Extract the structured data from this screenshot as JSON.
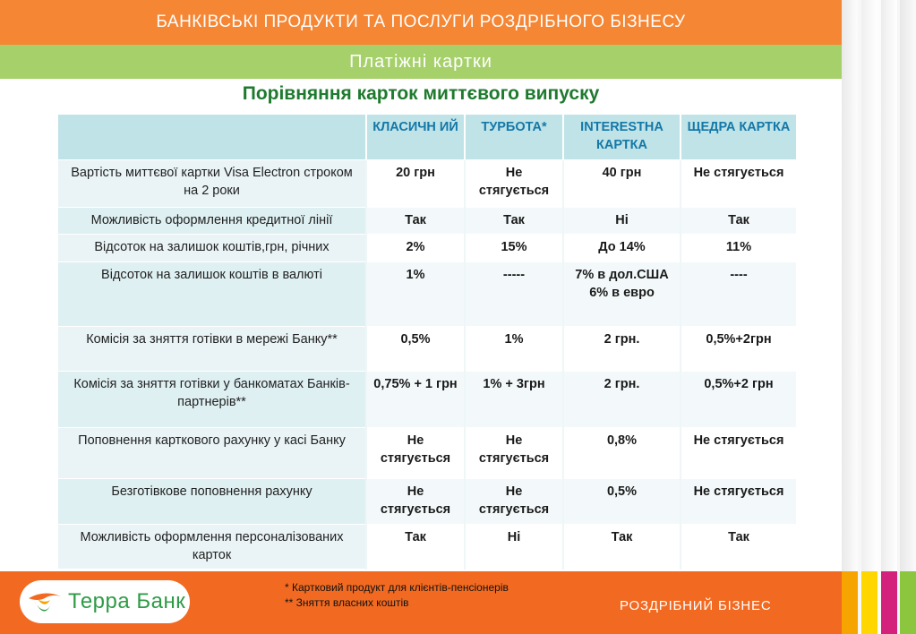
{
  "header": {
    "title": "БАНКІВСЬКІ ПРОДУКТИ ТА ПОСЛУГИ РОЗДРІБНОГО БІЗНЕСУ",
    "subtitle": "Платіжні картки"
  },
  "page_title": "Порівняння  карток миттєвого випуску",
  "table": {
    "columns": [
      "",
      "КЛАСИЧН ИЙ",
      "ТУРБОТА*",
      "INTERESTНА КАРТКА",
      "ЩЕДРА КАРТКА"
    ],
    "rows": [
      {
        "label": "Вартість миттєвої картки Visa Electron строком на 2 роки",
        "values": [
          "20 грн",
          "Не стягується",
          "40 грн",
          "Не стягується"
        ]
      },
      {
        "label": "Можливість оформлення кредитної лінії",
        "values": [
          "Так",
          "Так",
          "Ні",
          "Так"
        ]
      },
      {
        "label": "Відсоток на залишок коштів,грн, річних",
        "values": [
          "2%",
          "15%",
          "До 14%",
          "11%"
        ]
      },
      {
        "label": "Відсоток на залишок коштів в валюті",
        "values": [
          "1%",
          "-----",
          "7% в дол.США 6% в евро",
          "----"
        ]
      },
      {
        "label": "Комісія за зняття готівки в мережі Банку**",
        "values": [
          "0,5%",
          "1%",
          "2 грн.",
          "0,5%+2грн"
        ]
      },
      {
        "label": "Комісія за зняття готівки у банкоматах Банків-партнерів**",
        "values": [
          "0,75% + 1 грн",
          "1% + 3грн",
          "2 грн.",
          "0,5%+2 грн"
        ]
      },
      {
        "label": "Поповнення карткового рахунку у касі Банку",
        "values": [
          "Не стягується",
          "Не стягується",
          "0,8%",
          "Не стягується"
        ]
      },
      {
        "label": "Безготівкове поповнення рахунку",
        "values": [
          "Не стягується",
          "Не стягується",
          "0,5%",
          "Не стягується"
        ]
      },
      {
        "label": "Можливість оформлення персоналізованих карток",
        "values": [
          "Так",
          "Ні",
          "Так",
          "Так"
        ]
      }
    ]
  },
  "footer": {
    "logo_text": "Терра Банк",
    "logo_icon": "terra-bank-logo-icon",
    "footnote_1": "* Картковий продукт для клієнтів-пенсіонерів",
    "footnote_2": "** Зняття власних коштів",
    "section_label": "РОЗДРІБНИЙ БІЗНЕС"
  },
  "colors": {
    "orange": "#f58634",
    "green": "#a6d06a",
    "title_green": "#1e7a2e",
    "header_cell": "#bfe3e7",
    "header_text": "#1478a8"
  }
}
